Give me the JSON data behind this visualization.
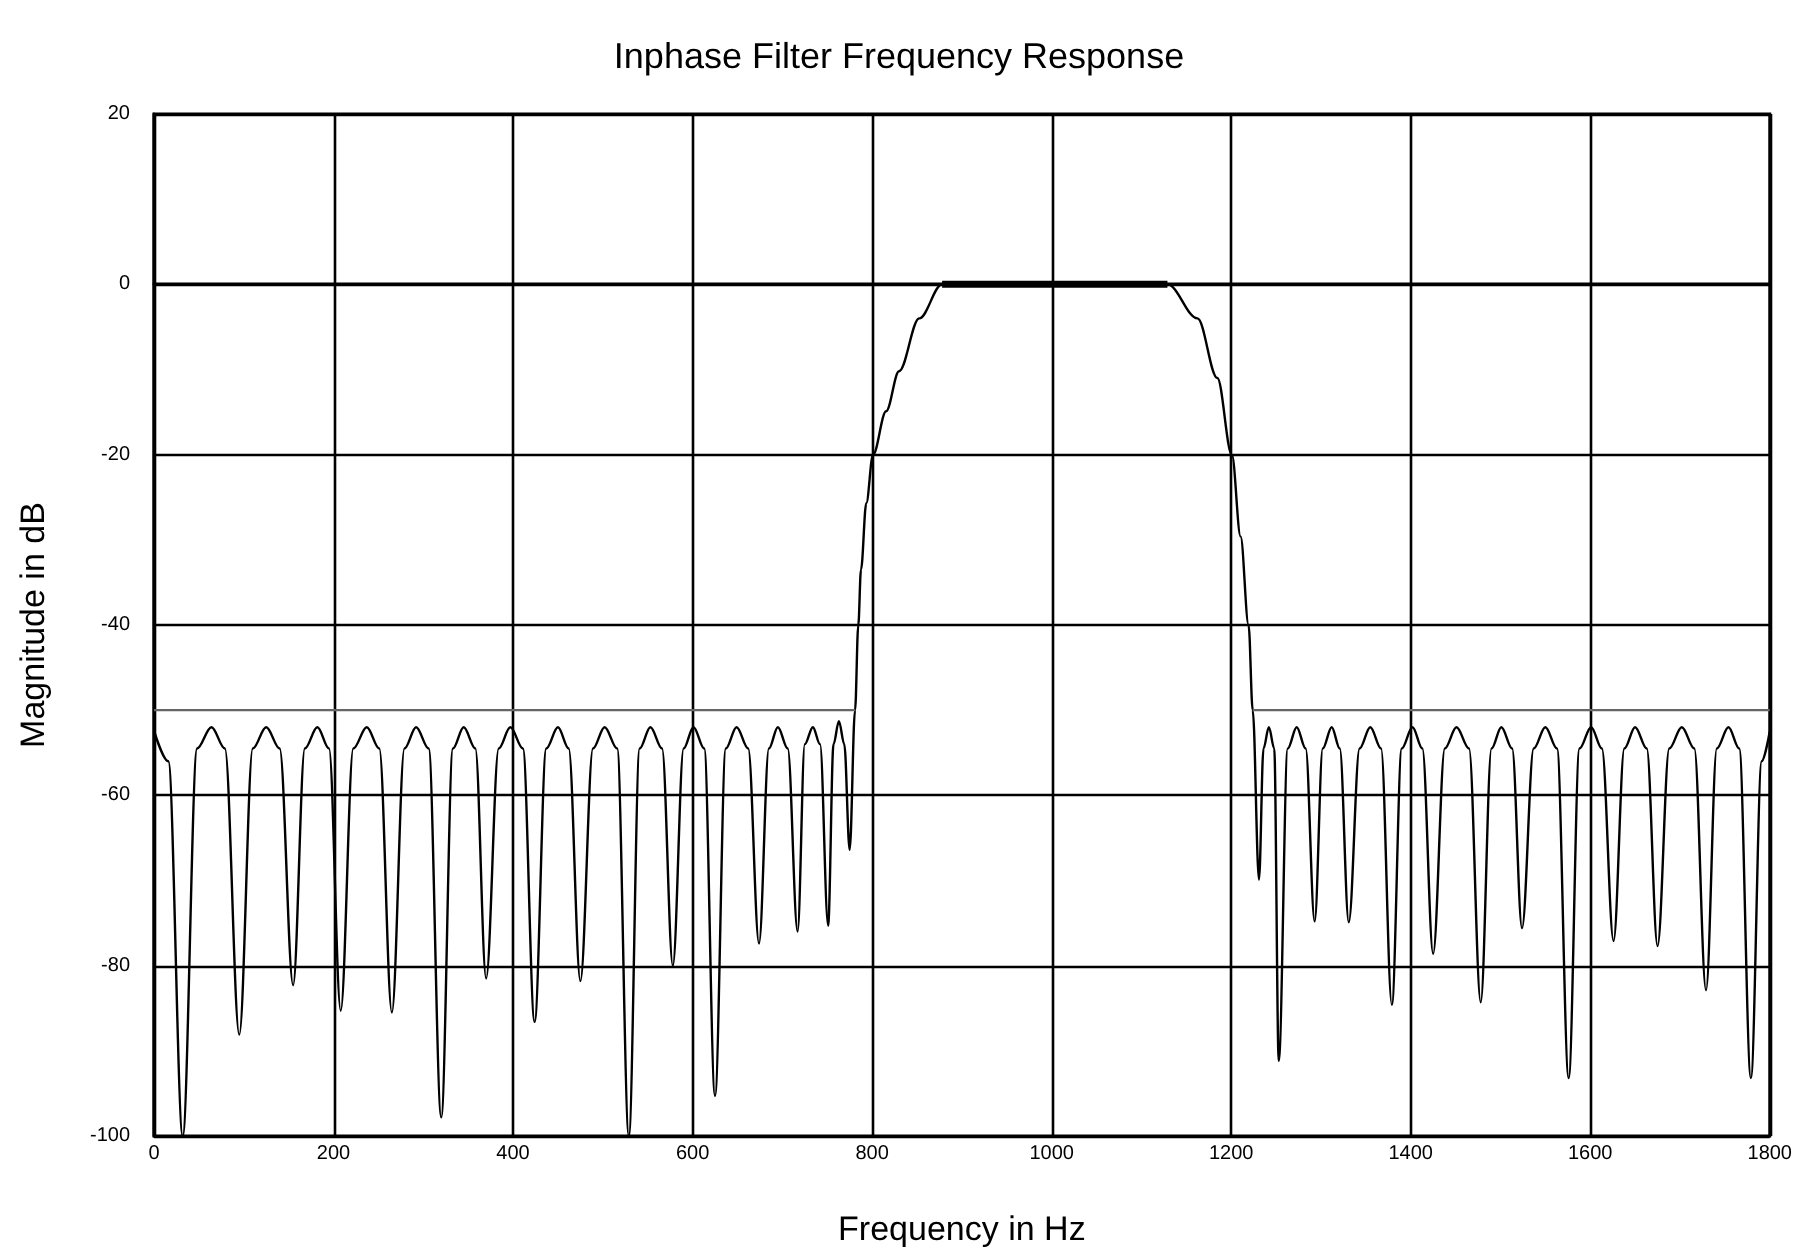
{
  "chart_data": {
    "type": "line",
    "title": "Inphase Filter Frequency Response",
    "xlabel": "Frequency in Hz",
    "ylabel": "Magnitude in dB",
    "xlim": [
      0,
      1800
    ],
    "xticks": [
      0,
      200,
      400,
      600,
      800,
      1000,
      1200,
      1400,
      1600,
      1800
    ],
    "ylim": [
      -100,
      20
    ],
    "yticks": [
      -100,
      -80,
      -60,
      -40,
      -20,
      0,
      20
    ],
    "grid": true,
    "marker": "none",
    "line_style": "solid",
    "series": [
      {
        "color": "#000000",
        "x": [
          0,
          16,
          32,
          48,
          64,
          79,
          95,
          110,
          125,
          140,
          155,
          168,
          182,
          195,
          208,
          222,
          237,
          251,
          265,
          279,
          292,
          306,
          320,
          333,
          345,
          358,
          370,
          384,
          397,
          411,
          424,
          437,
          450,
          462,
          475,
          489,
          502,
          516,
          529,
          541,
          553,
          566,
          578,
          590,
          601,
          613,
          625,
          637,
          649,
          662,
          674,
          685,
          695,
          706,
          717,
          725,
          734,
          742,
          751,
          757,
          763,
          769,
          775,
          781,
          784.6,
          787.6,
          793.5,
          801,
          815.6,
          830,
          852.5,
          878,
          1000,
          1129,
          1162.5,
          1184.6,
          1200.8,
          1210.5,
          1219.4,
          1224,
          1231,
          1236,
          1242,
          1248,
          1253,
          1263,
          1273,
          1283,
          1293,
          1302,
          1312,
          1321,
          1331,
          1343,
          1355,
          1367,
          1379,
          1390,
          1402,
          1413,
          1425,
          1438,
          1451,
          1465,
          1478,
          1490,
          1501,
          1513,
          1524,
          1537,
          1550,
          1563,
          1576,
          1588,
          1601,
          1613,
          1626,
          1638,
          1650,
          1663,
          1675,
          1688,
          1702,
          1716,
          1729,
          1741,
          1754,
          1766,
          1779,
          1791,
          1800
        ],
        "values": [
          -52.4,
          -56,
          -100,
          -54.5,
          -52,
          -54.5,
          -88.1,
          -54.5,
          -52,
          -54.5,
          -82.3,
          -54.5,
          -52,
          -54.5,
          -85.3,
          -54.5,
          -52,
          -54.5,
          -85.5,
          -54.5,
          -52,
          -54.5,
          -97.8,
          -54.5,
          -52,
          -54.5,
          -81.5,
          -54.5,
          -52,
          -54.5,
          -86.6,
          -54.5,
          -52,
          -54.5,
          -81.8,
          -54.5,
          -52,
          -54.5,
          -100,
          -54.5,
          -52,
          -54.5,
          -80,
          -54.5,
          -52,
          -54.5,
          -95.3,
          -54.5,
          -52,
          -54.5,
          -77.4,
          -54.5,
          -52,
          -54.5,
          -76,
          -54,
          -52,
          -54,
          -75.3,
          -54,
          -51.3,
          -54,
          -66.4,
          -50,
          -40,
          -33.5,
          -25.7,
          -20,
          -14.9,
          -10.2,
          -4,
          0,
          0,
          0,
          -4,
          -11,
          -20,
          -29.6,
          -40,
          -50,
          -69.9,
          -54.5,
          -52,
          -54.5,
          -91.2,
          -54.5,
          -52,
          -54.5,
          -74.8,
          -54.5,
          -52,
          -54.5,
          -74.9,
          -54.5,
          -52,
          -54.5,
          -84.6,
          -54.5,
          -52,
          -54.5,
          -78.6,
          -54.5,
          -52,
          -54.5,
          -84.3,
          -54.5,
          -52,
          -54.5,
          -75.6,
          -54.5,
          -52,
          -54.5,
          -93.2,
          -54.5,
          -52,
          -54.5,
          -77.1,
          -54.5,
          -52,
          -54.5,
          -77.7,
          -54.5,
          -52,
          -54.5,
          -82.9,
          -54.5,
          -52,
          -54.5,
          -93.2,
          -56,
          -52.5
        ]
      },
      {
        "color": "#666666",
        "x": [
          0,
          781,
          1000,
          1224,
          1800
        ],
        "values": [
          -50,
          -50,
          null,
          -50,
          -50
        ]
      },
      {
        "color": "#000000",
        "x": [
          878,
          1129
        ],
        "values": [
          0,
          0
        ]
      }
    ]
  }
}
